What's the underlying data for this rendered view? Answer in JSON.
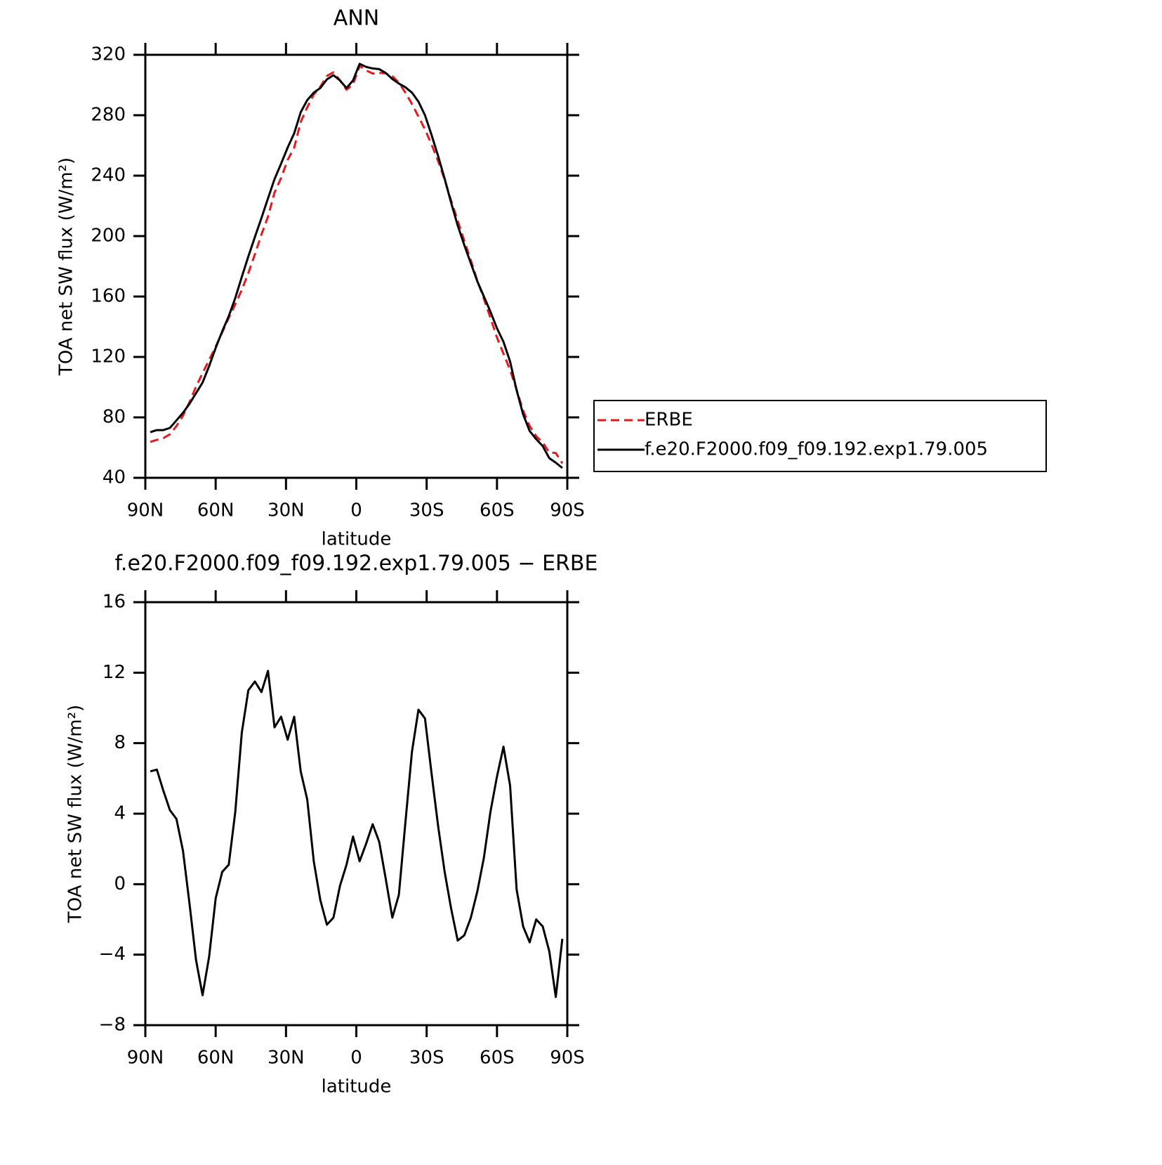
{
  "chart_data": [
    {
      "type": "line",
      "title": "ANN",
      "xlabel": "latitude",
      "ylabel": "TOA net SW flux (W/m²)",
      "x": [
        87.86,
        85.1,
        82.31,
        79.53,
        76.74,
        73.95,
        71.16,
        68.37,
        65.58,
        62.79,
        60.0,
        57.21,
        54.42,
        51.63,
        48.84,
        46.05,
        43.26,
        40.46,
        37.67,
        34.88,
        32.09,
        29.3,
        26.51,
        23.72,
        20.93,
        18.14,
        15.35,
        12.56,
        9.77,
        6.98,
        4.19,
        1.4,
        -1.4,
        -4.19,
        -6.98,
        -9.77,
        -12.56,
        -15.35,
        -18.14,
        -20.93,
        -23.72,
        -26.51,
        -29.3,
        -32.09,
        -34.88,
        -37.67,
        -40.46,
        -43.26,
        -46.05,
        -48.84,
        -51.63,
        -54.42,
        -57.21,
        -60.0,
        -62.79,
        -65.58,
        -68.37,
        -71.16,
        -73.95,
        -76.74,
        -79.53,
        -82.31,
        -85.1,
        -87.86
      ],
      "series": [
        {
          "name": "ERBE",
          "color": "#e8191c",
          "line_style": "dashed",
          "values": [
            63.8,
            65.1,
            66.3,
            68.8,
            74.3,
            81.1,
            90.1,
            100.3,
            109.3,
            118.1,
            126.8,
            136.3,
            145.9,
            154.9,
            164.4,
            175.5,
            188,
            201.1,
            212.9,
            228.8,
            238.5,
            250.4,
            258.5,
            275.6,
            285.2,
            293.7,
            298.9,
            306,
            308.4,
            303.1,
            296.9,
            300.3,
            312.7,
            309.7,
            307.6,
            308.1,
            307.7,
            305.9,
            301.6,
            295,
            287.5,
            279.1,
            270.6,
            260.7,
            249.7,
            237.3,
            223.4,
            210.2,
            196.9,
            183.9,
            170.4,
            158.5,
            145.9,
            132.9,
            122.2,
            111.4,
            98.3,
            84.4,
            74.3,
            67.6,
            63.4,
            56.8,
            56.4,
            49.6
          ]
        },
        {
          "name": "f.e20.F2000.f09_f09.192.exp1.79.005",
          "color": "#000000",
          "line_style": "solid",
          "values": [
            70.2,
            71.6,
            71.6,
            73,
            78,
            83,
            89,
            96,
            103,
            114,
            126,
            137,
            147,
            159,
            173,
            186.5,
            199.5,
            212,
            225,
            237.7,
            248,
            258.6,
            268,
            282,
            290,
            295,
            298,
            303.7,
            306.5,
            303,
            298,
            303,
            314,
            312,
            311,
            310.5,
            308,
            304,
            301,
            298.5,
            295,
            289,
            280,
            267,
            253,
            238,
            222,
            207,
            194,
            182,
            170,
            160,
            150,
            139,
            130,
            117,
            98,
            82,
            71,
            65.6,
            61,
            53,
            50,
            46.5
          ]
        }
      ],
      "xlim": [
        90,
        -90
      ],
      "xticks": [
        {
          "value": 90,
          "label": "90N"
        },
        {
          "value": 60,
          "label": "60N"
        },
        {
          "value": 30,
          "label": "30N"
        },
        0,
        {
          "value": -30,
          "label": "30S"
        },
        {
          "value": -60,
          "label": "60S"
        },
        {
          "value": -90,
          "label": "90S"
        }
      ],
      "ylim": [
        40,
        320
      ],
      "yticks": [
        40,
        80,
        120,
        160,
        200,
        240,
        280,
        320
      ],
      "legend": "right"
    },
    {
      "type": "line",
      "title": "f.e20.F2000.f09_f09.192.exp1.79.005 − ERBE",
      "xlabel": "latitude",
      "ylabel": "TOA net SW flux (W/m²)",
      "x": [
        87.86,
        85.1,
        82.31,
        79.53,
        76.74,
        73.95,
        71.16,
        68.37,
        65.58,
        62.79,
        60.0,
        57.21,
        54.42,
        51.63,
        48.84,
        46.05,
        43.26,
        40.46,
        37.67,
        34.88,
        32.09,
        29.3,
        26.51,
        23.72,
        20.93,
        18.14,
        15.35,
        12.56,
        9.77,
        6.98,
        4.19,
        1.4,
        -1.4,
        -4.19,
        -6.98,
        -9.77,
        -12.56,
        -15.35,
        -18.14,
        -20.93,
        -23.72,
        -26.51,
        -29.3,
        -32.09,
        -34.88,
        -37.67,
        -40.46,
        -43.26,
        -46.05,
        -48.84,
        -51.63,
        -54.42,
        -57.21,
        -60.0,
        -62.79,
        -65.58,
        -68.37,
        -71.16,
        -73.95,
        -76.74,
        -79.53,
        -82.31,
        -85.1,
        -87.86
      ],
      "values": [
        6.4,
        6.5,
        5.3,
        4.2,
        3.7,
        1.9,
        -1.1,
        -4.3,
        -6.3,
        -4.1,
        -0.8,
        0.7,
        1.1,
        4.1,
        8.6,
        11.0,
        11.5,
        10.9,
        12.1,
        8.9,
        9.5,
        8.2,
        9.5,
        6.4,
        4.8,
        1.3,
        -0.9,
        -2.3,
        -1.9,
        -0.1,
        1.1,
        2.7,
        1.3,
        2.3,
        3.4,
        2.4,
        0.3,
        -1.9,
        -0.6,
        3.5,
        7.5,
        9.9,
        9.4,
        6.3,
        3.3,
        0.7,
        -1.4,
        -3.2,
        -2.9,
        -1.9,
        -0.4,
        1.5,
        4.1,
        6.1,
        7.8,
        5.6,
        -0.3,
        -2.4,
        -3.3,
        -2.0,
        -2.4,
        -3.8,
        -6.4,
        -3.1
      ],
      "color": "#000000",
      "xlim": [
        90,
        -90
      ],
      "xticks": [
        {
          "value": 90,
          "label": "90N"
        },
        {
          "value": 60,
          "label": "60N"
        },
        {
          "value": 30,
          "label": "30N"
        },
        0,
        {
          "value": -30,
          "label": "30S"
        },
        {
          "value": -60,
          "label": "60S"
        },
        {
          "value": -90,
          "label": "90S"
        }
      ],
      "ylim": [
        -8,
        16
      ],
      "yticks": [
        {
          "value": -8,
          "label": "−8"
        },
        {
          "value": -4,
          "label": "−4"
        },
        0,
        4,
        8,
        12,
        16
      ]
    }
  ]
}
